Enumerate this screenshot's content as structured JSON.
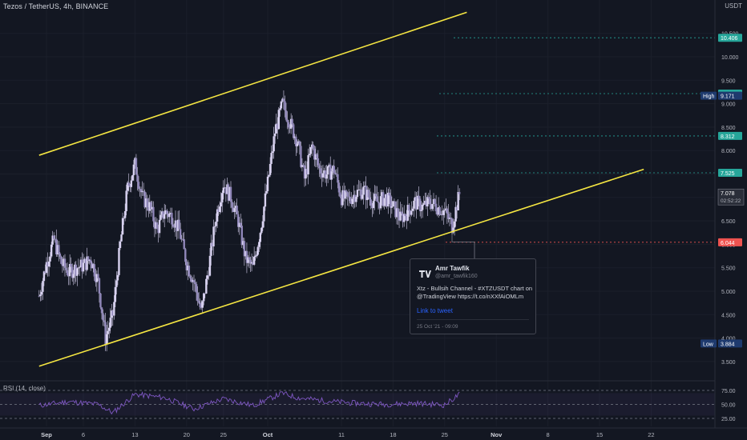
{
  "header": {
    "title": "Tezos / TetherUS, 4h, BINANCE",
    "currency": "USDT"
  },
  "rsi": {
    "label": "RSI (14, close)",
    "ticks": [
      "75.00",
      "50.00",
      "25.00"
    ]
  },
  "tweet": {
    "author": "Amr Tawfik",
    "handle": "@amr_tawfik160",
    "text": "Xtz  - Bullsih Channel - #XTZUSDT chart on @TradingView https://t.co/nXXfAiOMLm",
    "link_label": "Link to tweet",
    "date": "25 Oct '21 - 09:09"
  },
  "colors": {
    "background": "#131722",
    "channel_line": "#f5e642",
    "candle": "#d8d2f0",
    "rsi_line": "#7e57c2",
    "level_green": "#26a69a",
    "level_red": "#ef5350",
    "level_blue": "#1e3a6e"
  },
  "chart_data": {
    "type": "candlestick",
    "title": "Tezos / TetherUS, 4h, BINANCE",
    "price_axis": {
      "ticks": [
        10.5,
        10.0,
        9.5,
        9.0,
        8.5,
        8.0,
        7.5,
        7.0,
        6.5,
        6.0,
        5.5,
        5.0,
        4.5,
        4.0,
        3.5
      ],
      "tick_labels": [
        "10.500",
        "10.000",
        "9.500",
        "9.000",
        "8.500",
        "8.000",
        "7.500",
        "7.000",
        "6.500",
        "6.000",
        "5.500",
        "5.000",
        "4.500",
        "4.000",
        "3.500"
      ],
      "range": [
        3.35,
        11.1
      ]
    },
    "time_axis": {
      "labels": [
        "Sep",
        "6",
        "13",
        "20",
        "25",
        "Oct",
        "11",
        "18",
        "25",
        "Nov",
        "8",
        "15",
        "22"
      ]
    },
    "close_path": [
      [
        "Aug 31",
        4.9
      ],
      [
        "Sep 1",
        5.6
      ],
      [
        "Sep 2",
        6.1
      ],
      [
        "Sep 3",
        5.6
      ],
      [
        "Sep 4",
        5.4
      ],
      [
        "Sep 5",
        5.5
      ],
      [
        "Sep 6",
        5.55
      ],
      [
        "Sep 7",
        5.7
      ],
      [
        "Sep 8",
        5.2
      ],
      [
        "Sep 9",
        4.0
      ],
      [
        "Sep 10",
        4.5
      ],
      [
        "Sep 11",
        6.0
      ],
      [
        "Sep 12",
        7.2
      ],
      [
        "Sep 13",
        7.7
      ],
      [
        "Sep 14",
        7.0
      ],
      [
        "Sep 15",
        6.8
      ],
      [
        "Sep 16",
        6.3
      ],
      [
        "Sep 17",
        6.7
      ],
      [
        "Sep 18",
        6.6
      ],
      [
        "Sep 19",
        6.3
      ],
      [
        "Sep 20",
        5.6
      ],
      [
        "Sep 21",
        5.2
      ],
      [
        "Sep 22",
        4.55
      ],
      [
        "Sep 23",
        5.5
      ],
      [
        "Sep 24",
        6.6
      ],
      [
        "Sep 25",
        7.3
      ],
      [
        "Sep 26",
        7.0
      ],
      [
        "Sep 27",
        6.5
      ],
      [
        "Sep 28",
        5.7
      ],
      [
        "Sep 29",
        5.5
      ],
      [
        "Sep 30",
        6.3
      ],
      [
        "Oct 1",
        7.3
      ],
      [
        "Oct 2",
        8.4
      ],
      [
        "Oct 3",
        9.0
      ],
      [
        "Oct 4",
        8.6
      ],
      [
        "Oct 5",
        8.2
      ],
      [
        "Oct 6",
        7.4
      ],
      [
        "Oct 7",
        8.1
      ],
      [
        "Oct 8",
        7.6
      ],
      [
        "Oct 9",
        7.5
      ],
      [
        "Oct 10",
        7.6
      ],
      [
        "Oct 11",
        7.0
      ],
      [
        "Oct 12",
        6.95
      ],
      [
        "Oct 13",
        7.1
      ],
      [
        "Oct 14",
        7.15
      ],
      [
        "Oct 15",
        6.95
      ],
      [
        "Oct 16",
        6.9
      ],
      [
        "Oct 17",
        7.0
      ],
      [
        "Oct 18",
        6.8
      ],
      [
        "Oct 19",
        6.55
      ],
      [
        "Oct 20",
        6.7
      ],
      [
        "Oct 21",
        6.9
      ],
      [
        "Oct 22",
        6.8
      ],
      [
        "Oct 23",
        6.9
      ],
      [
        "Oct 24",
        6.8
      ],
      [
        "Oct 25",
        6.7
      ],
      [
        "Oct 26",
        6.4
      ],
      [
        "Oct 27",
        7.078
      ]
    ],
    "channel": [
      {
        "name": "upper",
        "points": [
          [
            "Aug 31",
            7.9
          ],
          [
            "Oct 28",
            10.95
          ]
        ]
      },
      {
        "name": "lower",
        "points": [
          [
            "Aug 31",
            3.4
          ],
          [
            "Nov 21",
            7.6
          ]
        ]
      }
    ],
    "price_levels": [
      {
        "label": "10.406",
        "value": 10.406,
        "color": "green",
        "dashed": true
      },
      {
        "label": "9.215",
        "value": 9.215,
        "color": "green",
        "dashed": true
      },
      {
        "label": "8.312",
        "value": 8.312,
        "color": "green",
        "dashed": true
      },
      {
        "label": "7.525",
        "value": 7.525,
        "color": "green",
        "dashed": true
      },
      {
        "label": "6.044",
        "value": 6.044,
        "color": "red",
        "dashed": true
      }
    ],
    "high": {
      "label": "High",
      "value": "9.171"
    },
    "low": {
      "label": "Low",
      "value": "3.884"
    },
    "last_price": {
      "value": "7.078",
      "countdown": "02:52:22"
    },
    "rsi_path": [
      [
        "Aug 31",
        48
      ],
      [
        "Sep 4",
        55
      ],
      [
        "Sep 8",
        50
      ],
      [
        "Sep 10",
        35
      ],
      [
        "Sep 13",
        68
      ],
      [
        "Sep 17",
        62
      ],
      [
        "Sep 21",
        42
      ],
      [
        "Sep 25",
        60
      ],
      [
        "Sep 29",
        48
      ],
      [
        "Oct 3",
        70
      ],
      [
        "Oct 5",
        62
      ],
      [
        "Oct 9",
        56
      ],
      [
        "Oct 13",
        52
      ],
      [
        "Oct 17",
        50
      ],
      [
        "Oct 21",
        52
      ],
      [
        "Oct 25",
        49
      ],
      [
        "Oct 27",
        68
      ]
    ]
  }
}
